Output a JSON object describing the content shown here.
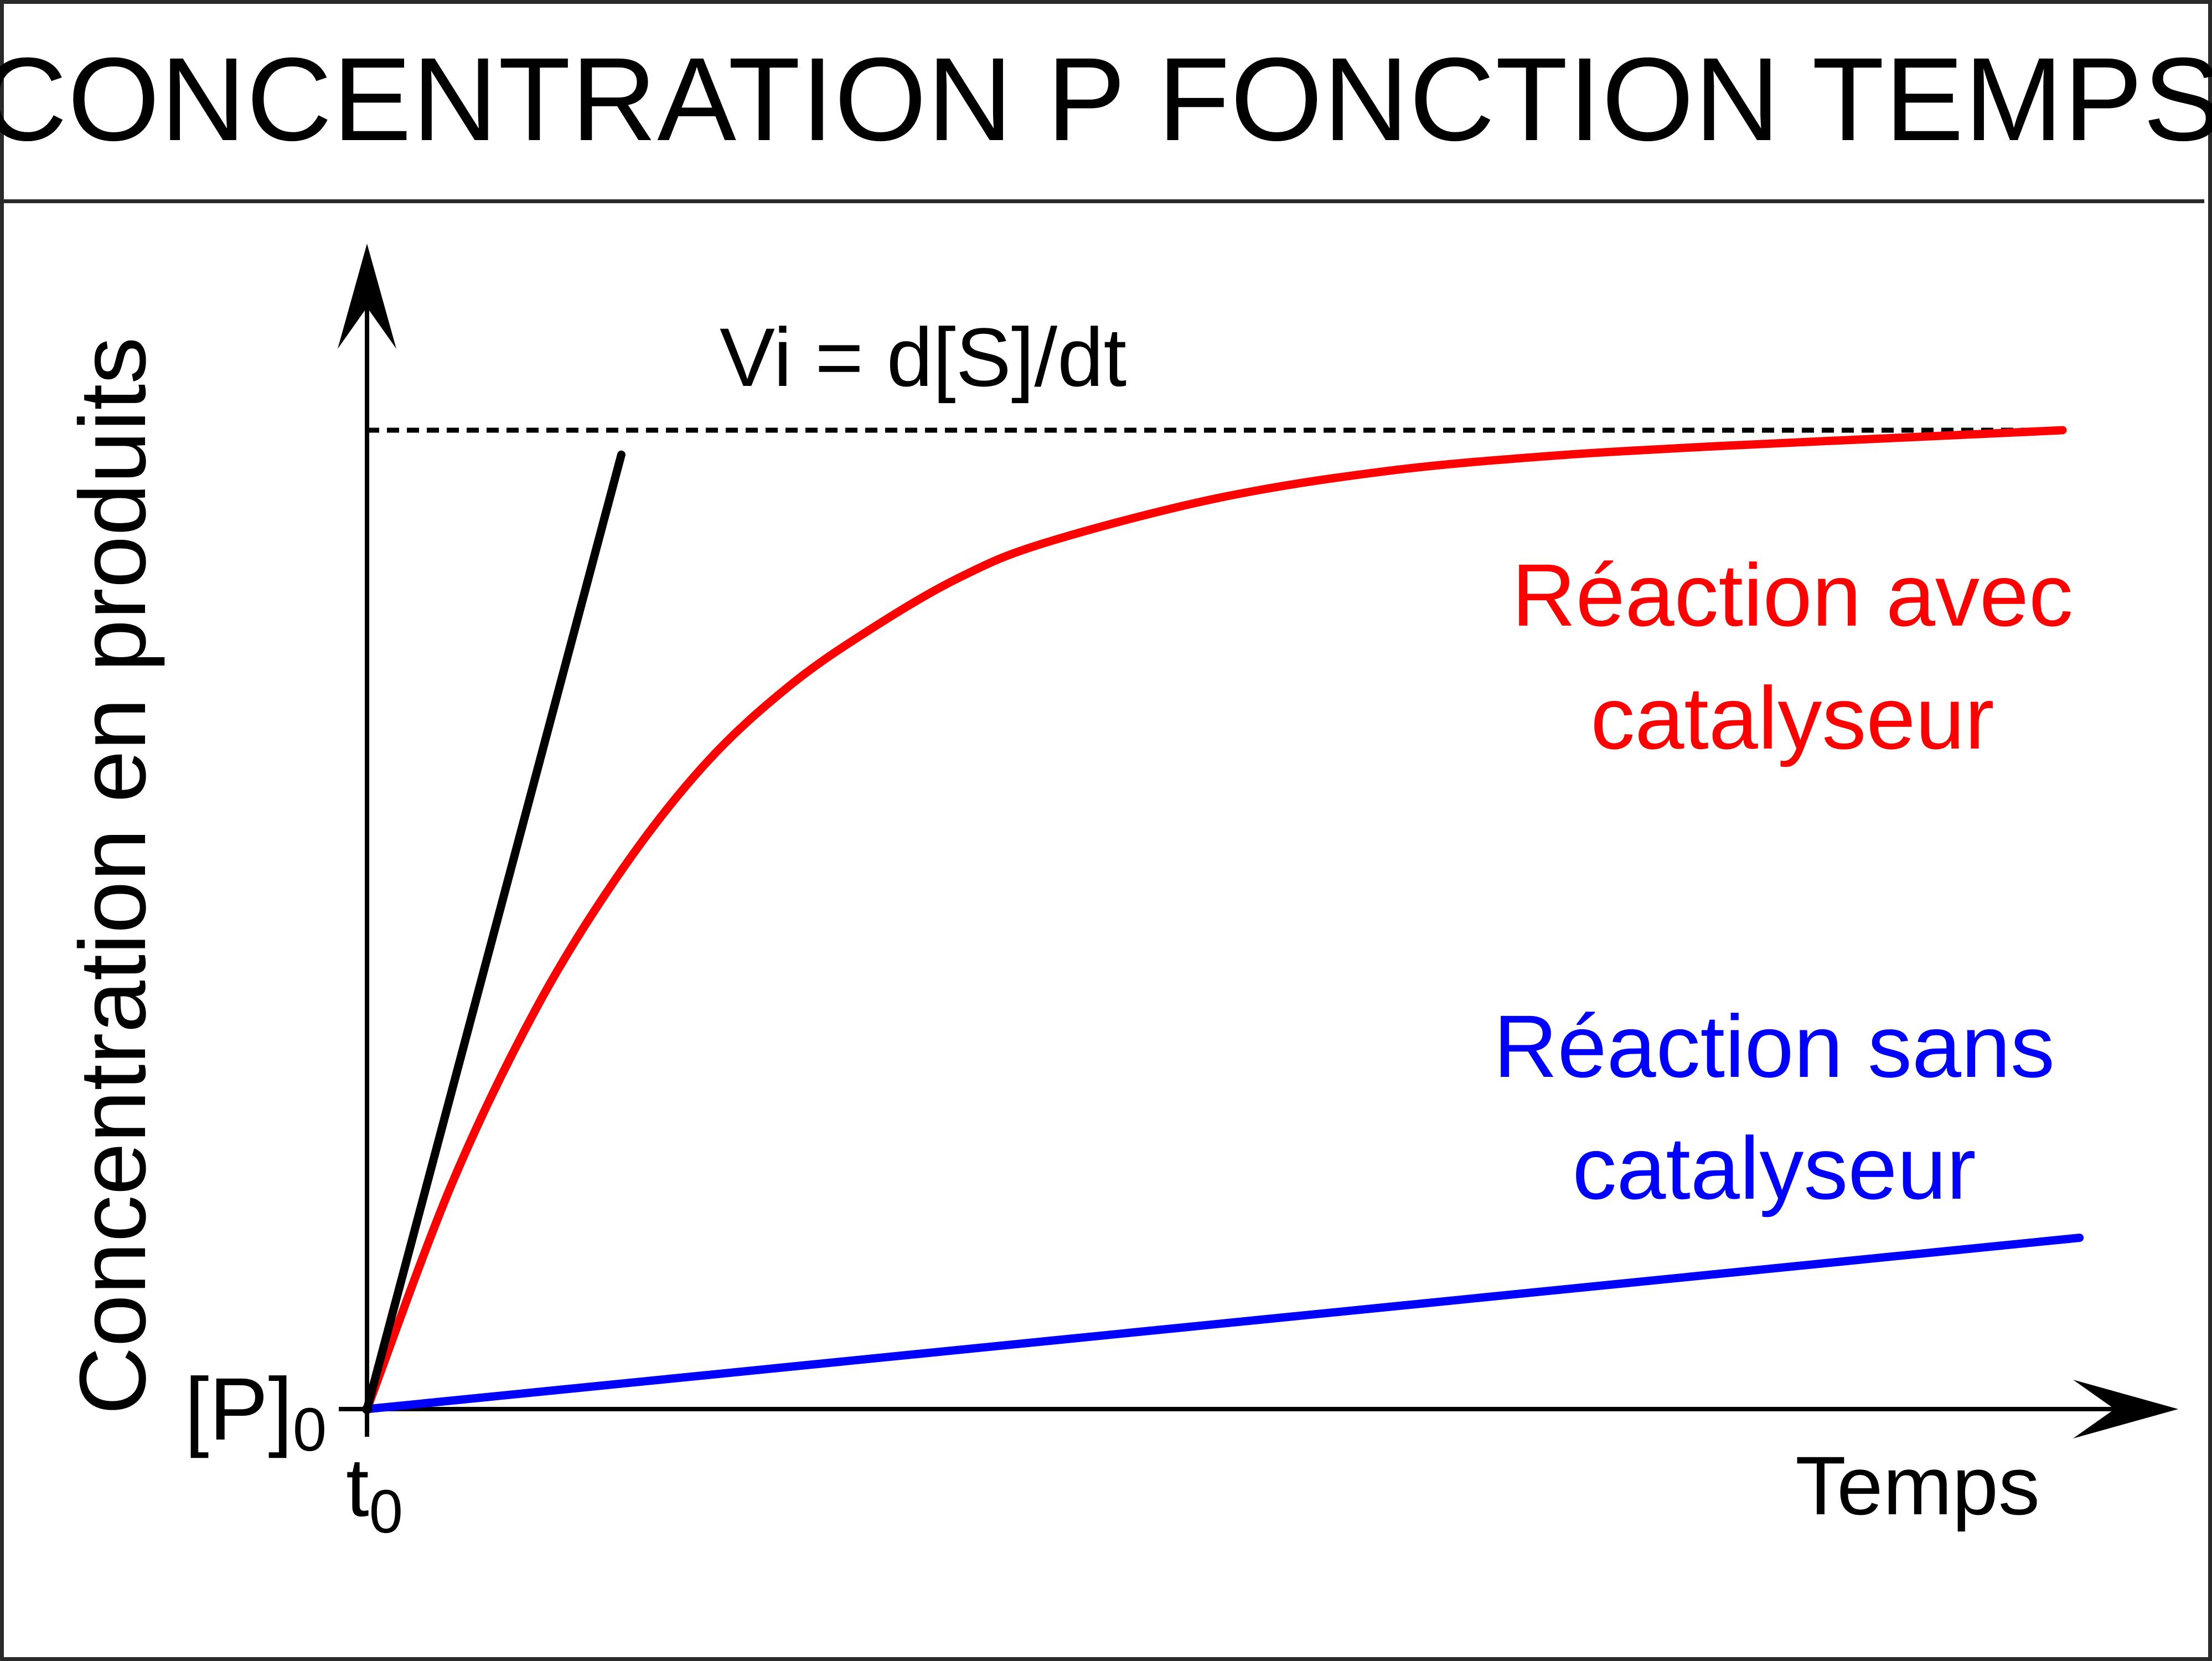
{
  "chart_data": {
    "type": "line",
    "title": "CONCENTRATION P FONCTION TEMPS",
    "xlabel": "Temps",
    "ylabel": "Concentration en produits",
    "x_origin_label": {
      "main": "t",
      "sub": "0"
    },
    "y_origin_label": {
      "main": "[P]",
      "sub": "0"
    },
    "annotation": "Vi = d[S]/dt",
    "xlim": [
      0,
      100
    ],
    "ylim": [
      0,
      100
    ],
    "grid": false,
    "series": [
      {
        "name": "Réaction avec catalyseur",
        "legend_lines": [
          "Réaction avec",
          "catalyseur"
        ],
        "color": "#ff0000",
        "x": [
          0,
          5,
          10,
          15,
          20,
          25,
          30,
          35,
          40,
          50,
          60,
          70,
          80,
          90,
          100
        ],
        "y": [
          0,
          23,
          41,
          55,
          66,
          74,
          80,
          85,
          88.5,
          93,
          95.8,
          97.4,
          98.4,
          99.2,
          100
        ]
      },
      {
        "name": "Réaction sans catalyseur",
        "legend_lines": [
          "Réaction sans",
          "catalyseur"
        ],
        "color": "#0000ff",
        "x": [
          0,
          101
        ],
        "y": [
          0,
          17.5
        ]
      },
      {
        "name": "Vi = d[S]/dt",
        "color": "#000000",
        "x": [
          0,
          15
        ],
        "y": [
          0,
          97.5
        ]
      }
    ],
    "plateau": {
      "y": 100,
      "style": "dashed",
      "color": "#000000"
    }
  }
}
